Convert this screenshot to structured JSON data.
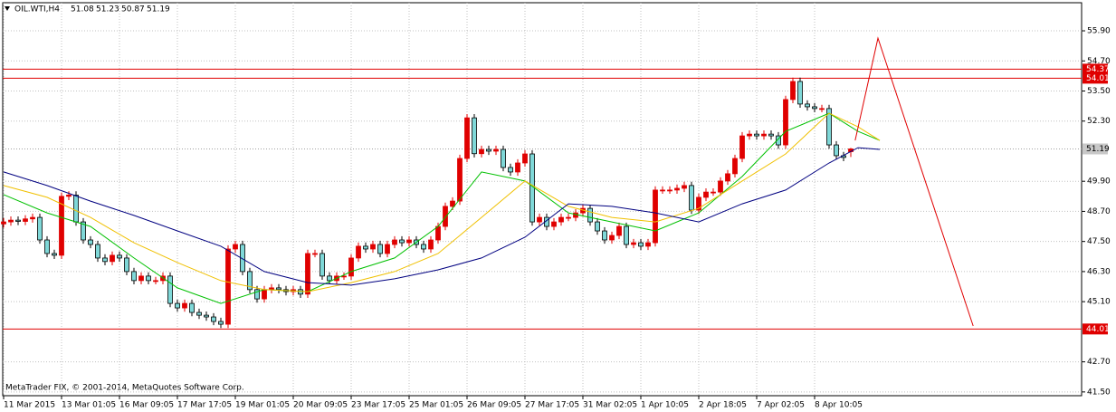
{
  "chart_data": {
    "type": "candlestick",
    "title": "OIL.WTI,H4",
    "footer": "MetaTrader FIX, © 2001-2014, MetaQuotes Software Corp.",
    "categories": [
      "11 Mar 2015",
      null,
      null,
      null,
      null,
      null,
      null,
      null,
      "13 Mar 01:05",
      null,
      null,
      null,
      null,
      null,
      null,
      null,
      "16 Mar 09:05",
      null,
      null,
      null,
      null,
      null,
      null,
      null,
      "17 Mar 17:05",
      null,
      null,
      null,
      null,
      null,
      null,
      null,
      "19 Mar 01:05",
      null,
      null,
      null,
      null,
      null,
      null,
      null,
      "20 Mar 09:05",
      null,
      null,
      null,
      null,
      null,
      null,
      null,
      "23 Mar 17:05",
      null,
      null,
      null,
      null,
      null,
      null,
      null,
      "25 Mar 01:05",
      null,
      null,
      null,
      null,
      null,
      null,
      null,
      "26 Mar 09:05",
      null,
      null,
      null,
      null,
      null,
      null,
      null,
      "27 Mar 17:05",
      null,
      null,
      null,
      null,
      null,
      null,
      null,
      "31 Mar 02:05",
      null,
      null,
      null,
      null,
      null,
      null,
      null,
      "1 Apr 10:05",
      null,
      null,
      null,
      null,
      null,
      null,
      null,
      "2 Apr 18:05",
      null,
      null,
      null,
      null,
      null,
      null,
      null,
      "7 Apr 02:05",
      null,
      null,
      null,
      null,
      null,
      null,
      null,
      "8 Apr 10:05",
      null,
      null,
      null,
      null,
      null
    ],
    "open": [
      48.2,
      48.28,
      48.35,
      48.3,
      48.4,
      48.46,
      47.56,
      47.02,
      46.95,
      49.3,
      49.35,
      48.28,
      47.56,
      47.38,
      46.84,
      46.7,
      46.95,
      46.84,
      46.3,
      45.94,
      46.12,
      45.94,
      45.94,
      46.12,
      45.03,
      44.85,
      45.03,
      44.67,
      44.56,
      44.49,
      44.31,
      44.2,
      47.2,
      47.38,
      46.3,
      45.58,
      45.21,
      45.58,
      45.65,
      45.58,
      45.5,
      45.58,
      45.4,
      47.02,
      47.02,
      46.12,
      45.94,
      46.12,
      46.12,
      46.84,
      47.31,
      47.2,
      47.38,
      47.02,
      47.38,
      47.56,
      47.45,
      47.56,
      47.38,
      47.2,
      47.56,
      48.1,
      48.9,
      49.11,
      50.81,
      52.43,
      51.0,
      51.17,
      51.1,
      51.17,
      50.45,
      50.27,
      50.63,
      50.99,
      48.28,
      48.46,
      48.1,
      48.28,
      48.46,
      48.46,
      48.64,
      48.82,
      48.28,
      47.92,
      47.56,
      47.74,
      48.1,
      47.38,
      47.45,
      47.31,
      47.45,
      49.55,
      49.55,
      49.55,
      49.62,
      49.73,
      48.75,
      49.26,
      49.47,
      49.47,
      49.91,
      50.2,
      50.81,
      51.71,
      51.78,
      51.71,
      51.78,
      51.71,
      51.35,
      53.16,
      53.88,
      52.98,
      52.87,
      52.8,
      52.8,
      51.35,
      50.92,
      51.08
    ],
    "high": [
      48.43,
      48.5,
      48.5,
      48.55,
      48.61,
      48.61,
      47.71,
      47.17,
      49.45,
      49.5,
      49.5,
      48.43,
      47.71,
      47.53,
      46.99,
      47.1,
      47.1,
      46.99,
      46.45,
      46.27,
      46.27,
      46.09,
      46.27,
      46.27,
      45.18,
      45.18,
      45.18,
      44.82,
      44.71,
      44.64,
      44.46,
      47.35,
      47.53,
      47.53,
      46.45,
      45.73,
      45.73,
      45.8,
      45.8,
      45.73,
      45.73,
      45.73,
      47.17,
      47.17,
      47.17,
      46.27,
      46.27,
      46.27,
      46.99,
      47.46,
      47.46,
      47.53,
      47.53,
      47.53,
      47.71,
      47.71,
      47.71,
      47.71,
      47.53,
      47.71,
      48.25,
      49.05,
      49.26,
      50.96,
      52.58,
      52.58,
      51.32,
      51.32,
      51.32,
      51.32,
      50.6,
      50.78,
      51.14,
      51.14,
      48.61,
      48.61,
      48.43,
      48.61,
      48.61,
      48.79,
      48.97,
      48.97,
      48.43,
      48.07,
      47.89,
      48.25,
      48.25,
      47.6,
      47.6,
      47.6,
      49.7,
      49.7,
      49.7,
      49.77,
      49.88,
      49.88,
      49.41,
      49.62,
      49.62,
      50.06,
      50.35,
      50.96,
      51.86,
      51.93,
      51.93,
      51.93,
      51.93,
      51.86,
      53.31,
      54.03,
      54.03,
      53.13,
      53.02,
      52.95,
      52.95,
      51.5,
      51.07,
      51.23
    ],
    "low": [
      48.05,
      48.13,
      48.15,
      48.15,
      48.25,
      47.41,
      46.87,
      46.8,
      46.8,
      49.15,
      48.13,
      47.41,
      47.23,
      46.69,
      46.55,
      46.55,
      46.69,
      46.15,
      45.79,
      45.79,
      45.79,
      45.79,
      45.79,
      44.88,
      44.7,
      44.7,
      44.52,
      44.41,
      44.34,
      44.16,
      44.05,
      44.05,
      47.05,
      46.15,
      45.43,
      45.06,
      45.06,
      45.43,
      45.43,
      45.35,
      45.35,
      45.25,
      45.25,
      46.87,
      45.97,
      45.79,
      45.79,
      45.97,
      45.97,
      46.69,
      47.05,
      47.05,
      46.87,
      46.87,
      47.23,
      47.3,
      47.3,
      47.23,
      47.05,
      47.05,
      47.41,
      47.95,
      48.75,
      48.96,
      50.66,
      50.85,
      50.85,
      50.95,
      50.95,
      50.3,
      50.12,
      50.12,
      50.48,
      48.13,
      48.13,
      47.95,
      47.95,
      48.13,
      48.31,
      48.31,
      48.49,
      48.13,
      47.77,
      47.41,
      47.41,
      47.59,
      47.23,
      47.23,
      47.16,
      47.16,
      47.3,
      49.4,
      49.4,
      49.4,
      49.47,
      48.6,
      48.6,
      49.11,
      49.32,
      49.32,
      49.76,
      50.05,
      50.66,
      51.56,
      51.56,
      51.56,
      51.56,
      51.2,
      51.2,
      53.01,
      52.83,
      52.72,
      52.65,
      52.65,
      51.2,
      50.77,
      50.7,
      50.87
    ],
    "close": [
      48.28,
      48.35,
      48.3,
      48.4,
      48.46,
      47.56,
      47.02,
      46.95,
      49.3,
      49.35,
      48.28,
      47.56,
      47.38,
      46.84,
      46.7,
      46.95,
      46.84,
      46.3,
      45.94,
      46.12,
      45.94,
      45.94,
      46.12,
      45.03,
      44.85,
      45.03,
      44.67,
      44.56,
      44.49,
      44.31,
      44.2,
      47.2,
      47.38,
      46.3,
      45.58,
      45.21,
      45.58,
      45.65,
      45.58,
      45.5,
      45.58,
      45.4,
      47.02,
      47.02,
      46.12,
      45.94,
      46.12,
      46.12,
      46.84,
      47.31,
      47.2,
      47.38,
      47.02,
      47.38,
      47.56,
      47.45,
      47.56,
      47.38,
      47.2,
      47.56,
      48.1,
      48.9,
      49.11,
      50.81,
      52.43,
      51.0,
      51.17,
      51.1,
      51.17,
      50.45,
      50.27,
      50.63,
      50.99,
      48.28,
      48.46,
      48.1,
      48.28,
      48.46,
      48.46,
      48.64,
      48.82,
      48.28,
      47.92,
      47.56,
      47.74,
      48.1,
      47.38,
      47.45,
      47.31,
      47.45,
      49.55,
      49.55,
      49.55,
      49.62,
      49.73,
      48.75,
      49.26,
      49.47,
      49.47,
      49.91,
      50.2,
      50.81,
      51.71,
      51.78,
      51.71,
      51.78,
      51.71,
      51.35,
      53.16,
      53.88,
      52.98,
      52.87,
      52.8,
      52.8,
      51.35,
      50.92,
      50.85,
      51.19
    ],
    "up_color": "#e00000",
    "down_color": "#7fd8d8",
    "series": [
      {
        "color": "#00c000",
        "x": [
          0,
          6,
          12,
          18,
          24,
          30,
          36,
          42,
          48,
          54,
          60,
          66,
          72,
          78,
          84,
          90,
          96,
          102,
          108,
          114,
          118,
          121
        ],
        "values": [
          49.37,
          48.64,
          48.1,
          46.84,
          45.65,
          45.03,
          45.58,
          45.5,
          46.3,
          46.84,
          48.1,
          50.27,
          49.91,
          48.64,
          48.28,
          47.92,
          48.64,
          50.09,
          51.89,
          52.61,
          51.89,
          51.53
        ]
      },
      {
        "color": "#f0c000",
        "x": [
          0,
          6,
          12,
          18,
          24,
          30,
          36,
          42,
          48,
          54,
          60,
          66,
          72,
          78,
          84,
          90,
          96,
          102,
          108,
          114,
          118,
          121
        ],
        "values": [
          49.73,
          49.26,
          48.46,
          47.45,
          46.66,
          45.94,
          45.58,
          45.5,
          45.86,
          46.3,
          47.02,
          48.46,
          49.91,
          48.9,
          48.46,
          48.28,
          48.82,
          49.91,
          50.99,
          52.61,
          52.07,
          51.53
        ]
      },
      {
        "color": "#000080",
        "x": [
          0,
          6,
          12,
          18,
          24,
          30,
          36,
          42,
          48,
          54,
          60,
          66,
          72,
          78,
          84,
          90,
          96,
          102,
          108,
          114,
          118,
          121
        ],
        "values": [
          50.27,
          49.73,
          49.11,
          48.54,
          47.92,
          47.31,
          46.3,
          45.86,
          45.76,
          46.01,
          46.37,
          46.84,
          47.67,
          49.0,
          48.9,
          48.64,
          48.28,
          49.0,
          49.55,
          50.63,
          51.24,
          51.17
        ]
      },
      {
        "color": "#e00000",
        "x": [
          117.6,
          120.75,
          133.9
        ],
        "values": [
          51.53,
          55.61,
          44.13
        ]
      }
    ],
    "levels": [
      54.37,
      54.01,
      44.01
    ],
    "level_color": "#e00000",
    "xlim": [
      -0.125,
      148.875
    ],
    "ylim": [
      41.35,
      57.02
    ],
    "yticks": [
      {
        "value": 55.9,
        "label": "55.90"
      },
      {
        "value": 54.7,
        "label": "54.70"
      },
      {
        "value": 53.5,
        "label": "53.50"
      },
      {
        "value": 52.3,
        "label": "52.30"
      },
      {
        "value": 49.9,
        "label": "49.90"
      },
      {
        "value": 48.7,
        "label": "48.70"
      },
      {
        "value": 47.5,
        "label": "47.50"
      },
      {
        "value": 46.3,
        "label": "46.30"
      },
      {
        "value": 45.1,
        "label": "45.10"
      },
      {
        "value": 42.7,
        "label": "42.70"
      },
      {
        "value": 41.5,
        "label": "41.50"
      }
    ],
    "grid": true
  }
}
